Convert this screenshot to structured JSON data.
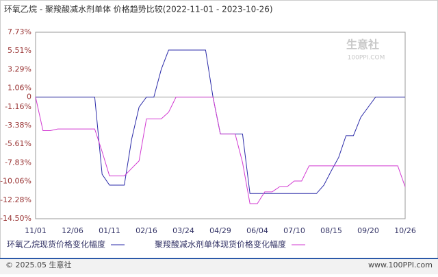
{
  "chart_data": {
    "type": "line",
    "title": "环氧乙烷 - 聚羧酸减水剂单体 价格趋势比较(2022-11-01 - 2023-10-26)",
    "categories": [
      "11/01",
      null,
      null,
      null,
      null,
      "12/06",
      null,
      null,
      null,
      null,
      "01/11",
      null,
      null,
      null,
      null,
      "02/16",
      null,
      null,
      null,
      null,
      "03/24",
      null,
      null,
      null,
      null,
      "04/29",
      null,
      null,
      null,
      null,
      "06/04",
      null,
      null,
      null,
      null,
      "07/10",
      null,
      null,
      null,
      null,
      "08/15",
      null,
      null,
      null,
      null,
      "09/20",
      null,
      null,
      null,
      null,
      "10/26"
    ],
    "series": [
      {
        "name": "环氧乙烷现货价格变化幅度",
        "color": "#2a2aa8",
        "values": [
          0,
          0,
          0,
          0,
          0,
          0,
          0,
          0,
          0,
          -9.2,
          -10.5,
          -10.5,
          -10.5,
          -5,
          -1.2,
          0,
          0,
          3.3,
          5.6,
          5.6,
          5.6,
          5.6,
          5.6,
          5.6,
          0,
          -4.4,
          -4.4,
          -4.4,
          -4.4,
          -11.5,
          -11.5,
          -11.5,
          -11.5,
          -11.5,
          -11.5,
          -11.5,
          -11.5,
          -11.5,
          -11.5,
          -10.5,
          -8.8,
          -7.2,
          -4.6,
          -4.6,
          -2.4,
          -1.2,
          0,
          0,
          0,
          0,
          0
        ]
      },
      {
        "name": "聚羧酸减水剂单体现货价格变化幅度",
        "color": "#d23ad2",
        "values": [
          0,
          -4,
          -4,
          -3.8,
          -3.8,
          -3.8,
          -3.8,
          -3.8,
          -3.8,
          -6.5,
          -9.4,
          -9.4,
          -9.4,
          -8.5,
          -7.6,
          -2.6,
          -2.6,
          -2.6,
          -1.8,
          0,
          0,
          0,
          0,
          0,
          0,
          -4.4,
          -4.4,
          -4.4,
          -7.8,
          -12.7,
          -12.7,
          -11.3,
          -11.3,
          -10.7,
          -10.7,
          -10,
          -10,
          -8.2,
          -8.2,
          -8.2,
          -8.2,
          -8.2,
          -8.2,
          -8.2,
          -8.2,
          -8.2,
          -8.2,
          -8.2,
          -8.2,
          -8.2,
          -10.7
        ]
      }
    ],
    "ylim": [
      -14.5,
      7.73
    ],
    "yticks": [
      {
        "value": 7.73,
        "label": "7.73%"
      },
      {
        "value": 5.51,
        "label": "5.51%"
      },
      {
        "value": 3.29,
        "label": "3.29%"
      },
      {
        "value": 1.06,
        "label": "1.06%"
      },
      0,
      {
        "value": -1.16,
        "label": "-1.16%"
      },
      {
        "value": -3.38,
        "label": "-3.38%"
      },
      {
        "value": -5.61,
        "label": "-5.61%"
      },
      {
        "value": -7.83,
        "label": "-7.83%"
      },
      {
        "value": -10.06,
        "label": "-10.06%"
      },
      {
        "value": -12.28,
        "label": "-12.28%"
      },
      {
        "value": -14.5,
        "label": "-14.50%"
      }
    ],
    "watermark": "生意社",
    "watermark_url": "100PPI.COM",
    "footer_left": "© 2025.05 生意社",
    "footer_right": "www.100PPI.com"
  }
}
